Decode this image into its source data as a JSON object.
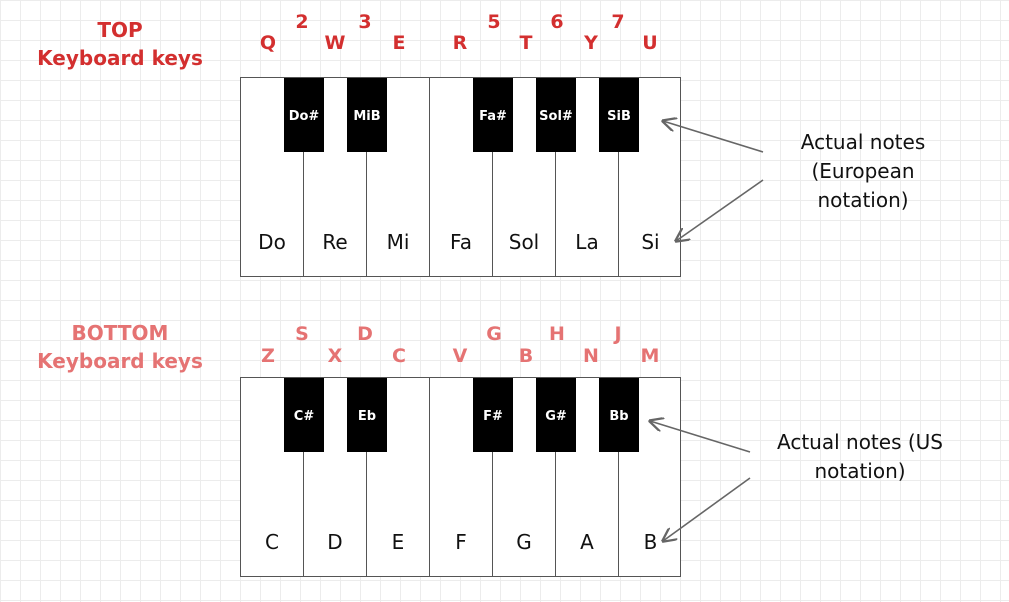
{
  "top_section": {
    "title_line1": "TOP",
    "title_line2": "Keyboard keys",
    "key_letters": [
      "Q",
      "2",
      "W",
      "3",
      "E",
      "R",
      "5",
      "T",
      "6",
      "Y",
      "7",
      "U"
    ],
    "white_notes": [
      "Do",
      "Re",
      "Mi",
      "Fa",
      "Sol",
      "La",
      "Si"
    ],
    "black_notes": [
      "Do#",
      "MiB",
      "Fa#",
      "Sol#",
      "SiB"
    ],
    "annotation_lines": [
      "Actual notes",
      "(European",
      "notation)"
    ]
  },
  "bottom_section": {
    "title_line1": "BOTTOM",
    "title_line2": "Keyboard keys",
    "key_letters": [
      "Z",
      "S",
      "X",
      "D",
      "C",
      "V",
      "G",
      "B",
      "H",
      "N",
      "J",
      "M"
    ],
    "white_notes": [
      "C",
      "D",
      "E",
      "F",
      "G",
      "A",
      "B"
    ],
    "black_notes": [
      "C#",
      "Eb",
      "F#",
      "G#",
      "Bb"
    ],
    "annotation_lines": [
      "Actual notes (US",
      "notation)"
    ]
  },
  "colors": {
    "top_label": "#d32f2f",
    "bottom_label": "#e57373",
    "arrow": "#666666"
  }
}
